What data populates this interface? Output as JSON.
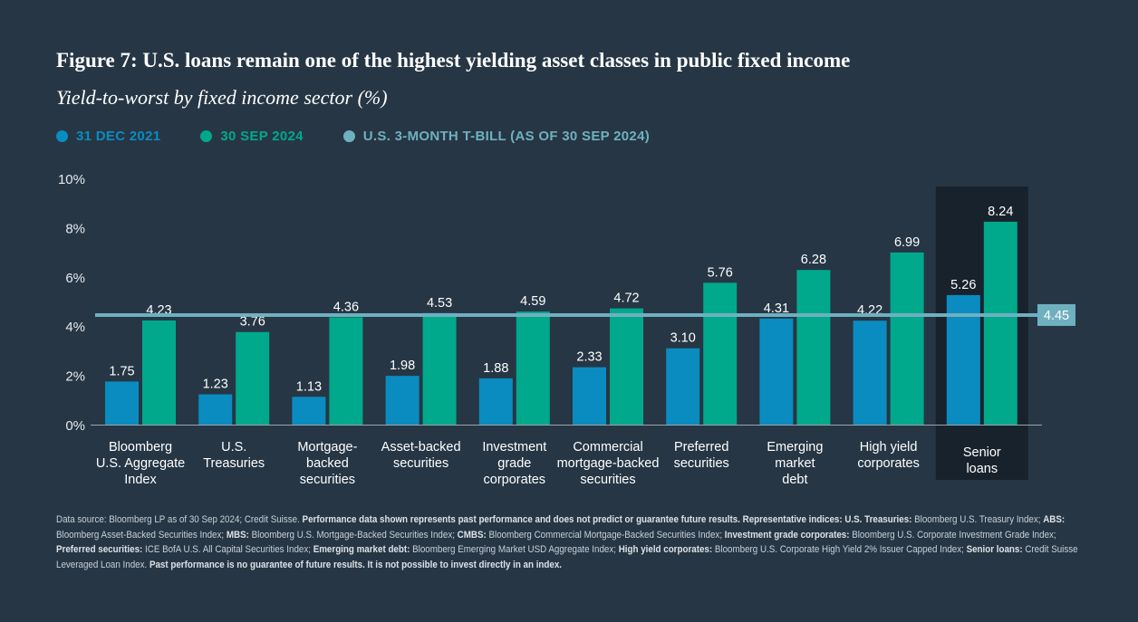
{
  "title": "Figure 7: U.S. loans remain one of the highest yielding asset classes in public fixed income",
  "subtitle": "Yield-to-worst by fixed income sector (%)",
  "legend": [
    {
      "label": "31 DEC 2021",
      "color": "#0a8cc0"
    },
    {
      "label": "30 SEP 2024",
      "color": "#00a98c"
    },
    {
      "label": "U.S. 3-MONTH T-BILL (AS OF 30 SEP 2024)",
      "color": "#6fb0bf"
    }
  ],
  "colors": {
    "background": "#263645",
    "highlight": "#18222c",
    "tbill": "#6fb0bf",
    "axis": "#9aa5ae"
  },
  "chart_data": {
    "type": "bar",
    "title": "Figure 7: U.S. loans remain one of the highest yielding asset classes in public fixed income",
    "ylabel": "Yield-to-worst by fixed income sector (%)",
    "ylim": [
      0,
      10
    ],
    "yticks": [
      "0%",
      "2%",
      "4%",
      "6%",
      "8%",
      "10%"
    ],
    "grid": false,
    "legend_position": "top-left",
    "categories": [
      [
        "Bloomberg",
        "U.S. Aggregate",
        "Index"
      ],
      [
        "U.S.",
        "Treasuries"
      ],
      [
        "Mortgage-",
        "backed",
        "securities"
      ],
      [
        "Asset-backed",
        "securities"
      ],
      [
        "Investment",
        "grade",
        "corporates"
      ],
      [
        "Commercial",
        "mortgage-backed",
        "securities"
      ],
      [
        "Preferred",
        "securities"
      ],
      [
        "Emerging",
        "market",
        "debt"
      ],
      [
        "High yield",
        "corporates"
      ],
      [
        "Senior",
        "loans"
      ]
    ],
    "highlighted_category": 9,
    "series": [
      {
        "name": "31 DEC 2021",
        "values": [
          1.75,
          1.23,
          1.13,
          1.98,
          1.88,
          2.33,
          3.1,
          4.31,
          4.22,
          5.26
        ],
        "labels": [
          "1.75",
          "1.23",
          "1.13",
          "1.98",
          "1.88",
          "2.33",
          "3.10",
          "4.31",
          "4.22",
          "5.26"
        ]
      },
      {
        "name": "30 SEP 2024",
        "values": [
          4.23,
          3.76,
          4.36,
          4.53,
          4.59,
          4.72,
          5.76,
          6.28,
          6.99,
          8.24
        ],
        "labels": [
          "4.23",
          "3.76",
          "4.36",
          "4.53",
          "4.59",
          "4.72",
          "5.76",
          "6.28",
          "6.99",
          "8.24"
        ]
      }
    ],
    "reference_line": {
      "name": "U.S. 3-MONTH T-BILL (AS OF 30 SEP 2024)",
      "value": 4.45,
      "label": "4.45"
    }
  },
  "footnote": [
    {
      "text": "Data source: Bloomberg LP as of 30 Sep 2024; Credit Suisse. ",
      "bold": false
    },
    {
      "text": "Performance data shown represents past performance and does not predict or guarantee future results. Representative indices: U.S. Treasuries:",
      "bold": true
    },
    {
      "text": " Bloomberg U.S. Treasury Index; ",
      "bold": false
    },
    {
      "text": "ABS:",
      "bold": true
    },
    {
      "text": " Bloomberg Asset-Backed Securities Index; ",
      "bold": false
    },
    {
      "text": "MBS:",
      "bold": true
    },
    {
      "text": " Bloomberg U.S. Mortgage-Backed Securities Index; ",
      "bold": false
    },
    {
      "text": "CMBS:",
      "bold": true
    },
    {
      "text": " Bloomberg Commercial Mortgage-Backed Securities Index; ",
      "bold": false
    },
    {
      "text": "Investment grade corporates:",
      "bold": true
    },
    {
      "text": " Bloomberg U.S. Corporate Investment Grade Index; ",
      "bold": false
    },
    {
      "text": "Preferred securities:",
      "bold": true
    },
    {
      "text": " ICE BofA U.S. All Capital Securities Index; ",
      "bold": false
    },
    {
      "text": "Emerging market debt:",
      "bold": true
    },
    {
      "text": " Bloomberg Emerging Market USD Aggregate Index; ",
      "bold": false
    },
    {
      "text": "High yield corporates:",
      "bold": true
    },
    {
      "text": " Bloomberg U.S. Corporate High Yield 2% Issuer Capped Index; ",
      "bold": false
    },
    {
      "text": "Senior loans:",
      "bold": true
    },
    {
      "text": " Credit Suisse Leveraged Loan Index. ",
      "bold": false
    },
    {
      "text": "Past performance is no guarantee of future results. It is not possible to invest directly in an index.",
      "bold": true
    }
  ]
}
